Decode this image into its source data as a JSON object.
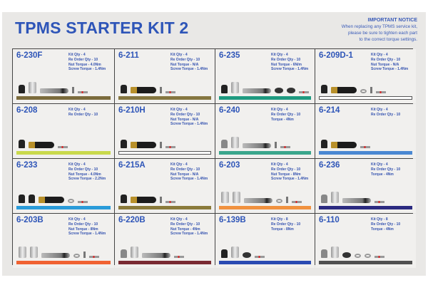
{
  "header": {
    "title": "TPMS STARTER KIT 2",
    "notice_title": "IMPORTANT NOTICE",
    "notice_lines": [
      "When replacing any TPMS service kit,",
      "please be sure to tighten each part",
      "to the correct torque settings."
    ]
  },
  "kits": [
    {
      "code": "6-230F",
      "specs": [
        "Kit Qty - 4",
        "Re Order Qty - 10",
        "Nut Torque - 4.0Nm",
        "Screw Torque - 1.4Nm"
      ],
      "bar": "#7b6b3c",
      "parts": [
        "cap",
        "sleeve",
        "stem-metal",
        "screw",
        "core"
      ]
    },
    {
      "code": "6-211",
      "specs": [
        "Kit Qty - 4",
        "Re Order Qty - 10",
        "Nut Torque - N/A",
        "Screw Torque - 1.4Nm"
      ],
      "bar": "#857640",
      "parts": [
        "cap",
        "stem-rubber",
        "screw",
        "core"
      ]
    },
    {
      "code": "6-235",
      "specs": [
        "Kit Qty - 4",
        "Re Order Qty - 10",
        "Nut Torque - 6N/m",
        "Screw Torque - 1.4Nm"
      ],
      "bar": "#1e9a80",
      "parts": [
        "cap",
        "sleeve",
        "stem-metal",
        "nut",
        "nut",
        "core"
      ]
    },
    {
      "code": "6-209D-1",
      "specs": [
        "Kit Qty - 4",
        "Re Order Qty - 10",
        "Nut Torque - N/A",
        "Screw Torque - 1.4Nm"
      ],
      "bar": "outline",
      "parts": [
        "cap",
        "stem-rubber",
        "ring",
        "screw",
        "core"
      ]
    },
    {
      "code": "6-208",
      "specs": [
        "Kit Qty - 4",
        "Re Order Qty - 10"
      ],
      "bar": "#c9d94c",
      "parts": [
        "cap",
        "stem-rubber",
        "core"
      ]
    },
    {
      "code": "6-210H",
      "specs": [
        "Kit Qty - 4",
        "Re Order Qty - 10",
        "Nut Torque - N/A",
        "Screw Torque - 1.4Nm"
      ],
      "bar": "outline",
      "parts": [
        "cap",
        "stem-rubber",
        "screw",
        "core"
      ]
    },
    {
      "code": "6-240",
      "specs": [
        "Kit Qty - 4",
        "Re Order Qty - 10",
        "Torque - 4Nm"
      ],
      "bar": "#3aa68c",
      "parts": [
        "cap grey",
        "sleeve",
        "stem-metal",
        "screw",
        "core"
      ]
    },
    {
      "code": "6-214",
      "specs": [
        "Kit Qty - 4",
        "Re Order Qty - 10"
      ],
      "bar": "#4a88d2",
      "parts": [
        "cap",
        "stem-rubber",
        "core"
      ]
    },
    {
      "code": "6-233",
      "specs": [
        "Kit Qty - 4",
        "Re Order Qty - 10",
        "Nut Torque - 4.0Nm",
        "Screw Torque - 2.2Nm"
      ],
      "bar": "#2a9bd9",
      "parts": [
        "cap",
        "cap",
        "stem-rubber",
        "ring",
        "core"
      ]
    },
    {
      "code": "6-215A",
      "specs": [
        "Kit Qty - 4",
        "Re Order Qty - 10",
        "Nut Torque - N/A",
        "Screw Torque - 1.4Nm"
      ],
      "bar": "#8a7a3a",
      "parts": [
        "cap",
        "stem-rubber",
        "screw",
        "core"
      ]
    },
    {
      "code": "6-203",
      "specs": [
        "Kit Qty - 4",
        "Re Order Qty - 10",
        "Nut Torque - 8Nm",
        "Screw Torque - 1.4Nm"
      ],
      "bar": "#f0913f",
      "parts": [
        "sleeve",
        "sleeve",
        "stem-metal",
        "ring",
        "screw",
        "core"
      ]
    },
    {
      "code": "6-236",
      "specs": [
        "Kit Qty - 4",
        "Re Order Qty - 10",
        "Torque - 4Nm"
      ],
      "bar": "#2b2a80",
      "parts": [
        "cap grey",
        "sleeve",
        "stem-metal",
        "core"
      ]
    },
    {
      "code": "6-203B",
      "specs": [
        "Kit Qty - 4",
        "Re Order Qty - 10",
        "Nut Torque - 8Nm",
        "Screw Torque - 1.4Nm"
      ],
      "bar": "#f06232",
      "parts": [
        "sleeve",
        "sleeve",
        "stem-metal",
        "ring",
        "screw",
        "core"
      ]
    },
    {
      "code": "6-220B",
      "specs": [
        "Kit Qty - 4",
        "Re Order Qty - 10",
        "Nut Torque - 4Nm",
        "Screw Torque - 1.4Nm"
      ],
      "bar": "#7a2a32",
      "parts": [
        "cap grey",
        "sleeve",
        "stem-metal",
        "core"
      ]
    },
    {
      "code": "6-139B",
      "specs": [
        "Kit Qty - 8",
        "Re Order Qty - 10",
        "Torque - 8Nm"
      ],
      "bar": "#2a4ab2",
      "parts": [
        "cap",
        "sleeve",
        "nut",
        "core"
      ]
    },
    {
      "code": "6-110",
      "specs": [
        "Kit Qty - 8",
        "Re Order Qty - 10",
        "Torque - 4Nm"
      ],
      "bar": "#505050",
      "parts": [
        "cap grey",
        "sleeve",
        "nut",
        "ring",
        "ring",
        "core"
      ]
    }
  ]
}
